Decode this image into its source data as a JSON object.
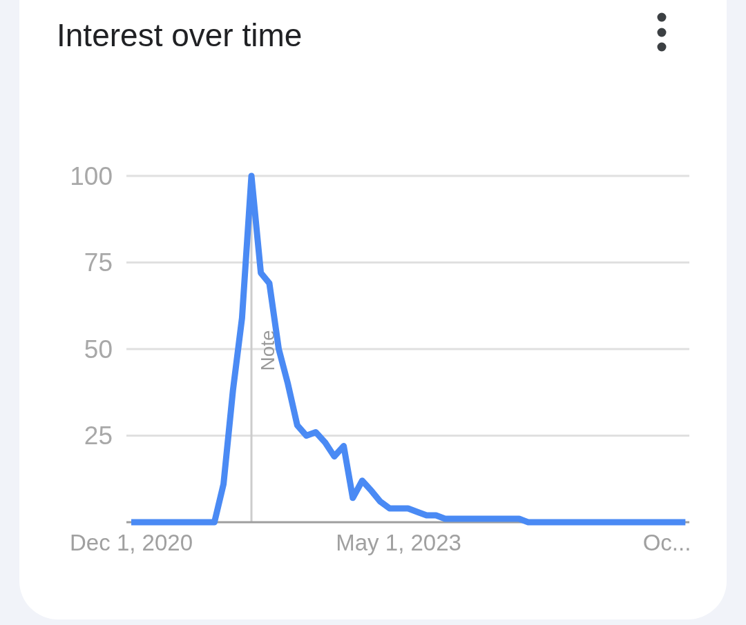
{
  "chart_data": {
    "type": "line",
    "title": "Interest over time",
    "x": [
      "2020-12",
      "2021-01",
      "2021-02",
      "2021-03",
      "2021-04",
      "2021-05",
      "2021-06",
      "2021-07",
      "2021-08",
      "2021-09",
      "2021-10",
      "2021-11",
      "2021-12",
      "2022-01",
      "2022-02",
      "2022-03",
      "2022-04",
      "2022-05",
      "2022-06",
      "2022-07",
      "2022-08",
      "2022-09",
      "2022-10",
      "2022-11",
      "2022-12",
      "2023-01",
      "2023-02",
      "2023-03",
      "2023-04",
      "2023-05",
      "2023-06",
      "2023-07",
      "2023-08",
      "2023-09",
      "2023-10",
      "2023-11",
      "2023-12",
      "2024-01",
      "2024-02",
      "2024-03",
      "2024-04",
      "2024-05",
      "2024-06",
      "2024-07",
      "2024-08",
      "2024-09",
      "2024-10",
      "2024-11",
      "2024-12",
      "2025-01",
      "2025-02",
      "2025-03",
      "2025-04",
      "2025-05",
      "2025-06",
      "2025-07",
      "2025-08",
      "2025-09",
      "2025-10",
      "2025-11",
      "2025-12"
    ],
    "series": [
      {
        "color": "#4a8af4",
        "values": [
          0,
          0,
          0,
          0,
          0,
          0,
          0,
          0,
          0,
          0,
          11,
          38,
          59,
          100,
          72,
          69,
          50,
          40,
          28,
          25,
          26,
          23,
          19,
          22,
          7,
          12,
          9,
          6,
          4,
          4,
          4,
          3,
          2,
          2,
          1,
          1,
          1,
          1,
          1,
          1,
          1,
          1,
          1,
          0,
          0,
          0,
          0,
          0,
          0,
          0,
          0,
          0,
          0,
          0,
          0,
          0,
          0,
          0,
          0,
          0,
          0
        ]
      }
    ],
    "xlim": [
      "2020-11-15",
      "2025-12-14"
    ],
    "xticks": [
      {
        "value": "2020-12-01",
        "label": "Dec 1, 2020"
      },
      {
        "value": "2023-05-01",
        "label": "May 1, 2023"
      },
      {
        "value": "2025-10-01",
        "label": "Oc..."
      }
    ],
    "ylim": [
      0,
      100
    ],
    "yticks": [
      25,
      50,
      75,
      100
    ],
    "grid": "y",
    "ref_lines": [
      {
        "axis": "x",
        "value": "2022-01-01",
        "label": "Note",
        "color": "#cccccc"
      }
    ]
  }
}
